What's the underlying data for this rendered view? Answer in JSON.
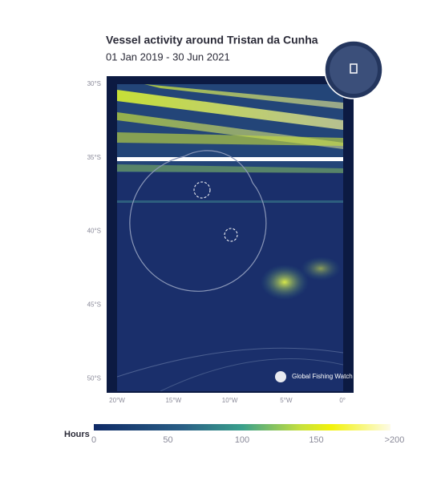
{
  "header": {
    "title": "Vessel activity around Tristan da Cunha",
    "subtitle": "01 Jan 2019 - 30 Jun 2021"
  },
  "map": {
    "lat_labels": [
      "30°S",
      "35°S",
      "40°S",
      "45°S",
      "50°S"
    ],
    "lon_labels": [
      "20°W",
      "15°W",
      "10°W",
      "5°W",
      "0°"
    ],
    "attribution": "Global Fishing Watch"
  },
  "legend": {
    "title": "Hours",
    "range": [
      0,
      200
    ],
    "ticks": [
      0,
      50,
      100,
      150,
      {
        "value": 200,
        "label": ">200"
      }
    ]
  }
}
